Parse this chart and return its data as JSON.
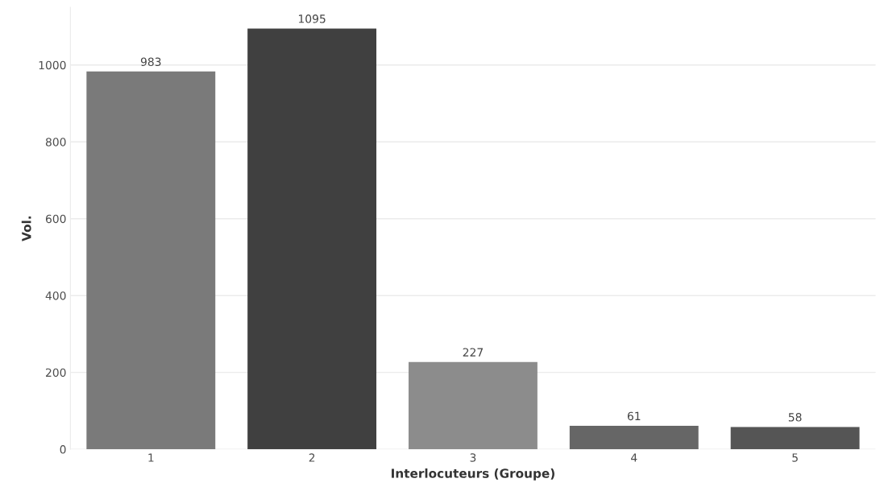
{
  "chart_data": {
    "type": "bar",
    "xlabel": "Interlocuteurs (Groupe)",
    "ylabel": "Vol.",
    "categories": [
      "1",
      "2",
      "3",
      "4",
      "5"
    ],
    "values": [
      983,
      1095,
      227,
      61,
      58
    ],
    "colors": [
      "#7a7a7a",
      "#404040",
      "#8c8c8c",
      "#666666",
      "#555555"
    ],
    "ylim": [
      0,
      1150
    ],
    "yticks": [
      0,
      200,
      400,
      600,
      800,
      1000
    ],
    "grid": "y",
    "data_labels": true
  }
}
